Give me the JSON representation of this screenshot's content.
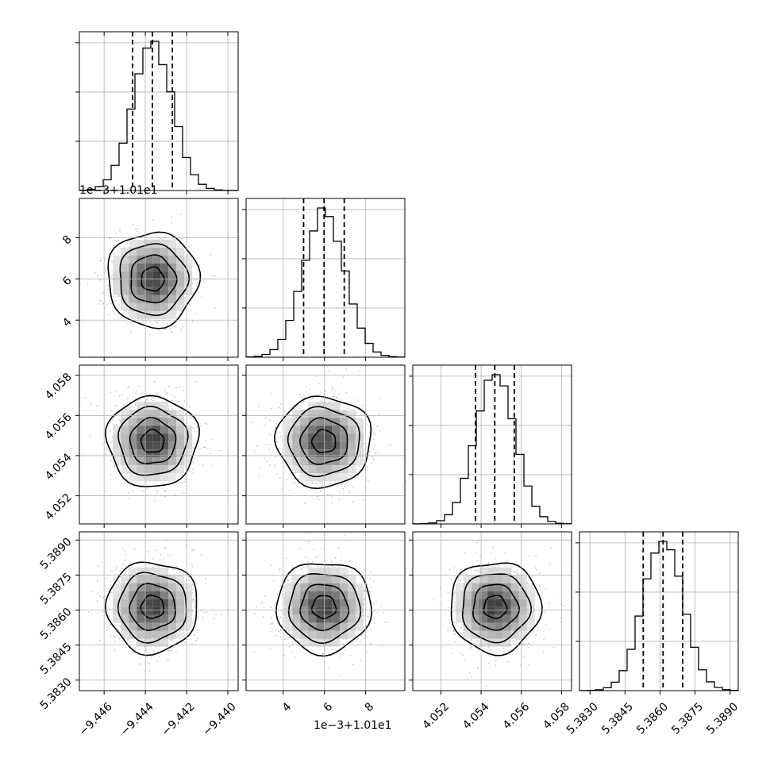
{
  "chart_data": {
    "type": "corner",
    "grid": true,
    "colors": {
      "line": "#000000",
      "grid": "#b0b0b0",
      "points": "#8c8c8c",
      "frame": "#000000"
    },
    "params": [
      {
        "range": [
          -9.4472,
          -9.4395
        ],
        "ticks": [
          -9.446,
          -9.444,
          -9.442,
          -9.44
        ],
        "tick_labels": [
          "−9.446",
          "−9.444",
          "−9.442",
          "−9.440"
        ],
        "offset_label": "",
        "mean": -9.44365,
        "sd": 0.00096,
        "quantiles": [
          -9.44462,
          -9.44366,
          -9.44269
        ]
      },
      {
        "range": [
          2.2,
          9.9
        ],
        "ticks": [
          4,
          6,
          8
        ],
        "tick_labels": [
          "4",
          "6",
          "8"
        ],
        "offset_label": "1e−3+1.01e1",
        "mean": 5.98,
        "sd": 1.0,
        "quantiles": [
          4.99,
          5.98,
          6.96
        ]
      },
      {
        "range": [
          4.0506,
          4.0585
        ],
        "ticks": [
          4.052,
          4.054,
          4.056,
          4.058
        ],
        "tick_labels": [
          "4.052",
          "4.054",
          "4.056",
          "4.058"
        ],
        "offset_label": "",
        "mean": 4.0547,
        "sd": 0.00098,
        "quantiles": [
          4.05372,
          4.05468,
          4.05565
        ]
      },
      {
        "range": [
          5.38255,
          5.38935
        ],
        "ticks": [
          5.383,
          5.3845,
          5.386,
          5.3875,
          5.389
        ],
        "tick_labels": [
          "5.3830",
          "5.3845",
          "5.3860",
          "5.3875",
          "5.3890"
        ],
        "offset_label": "",
        "mean": 5.38613,
        "sd": 0.00085,
        "quantiles": [
          5.38528,
          5.38613,
          5.38697
        ]
      }
    ],
    "histogram_bins": 20,
    "contour_levels_sigma": [
      0.5,
      1.0,
      1.5,
      2.0
    ],
    "n_points": 1100
  }
}
